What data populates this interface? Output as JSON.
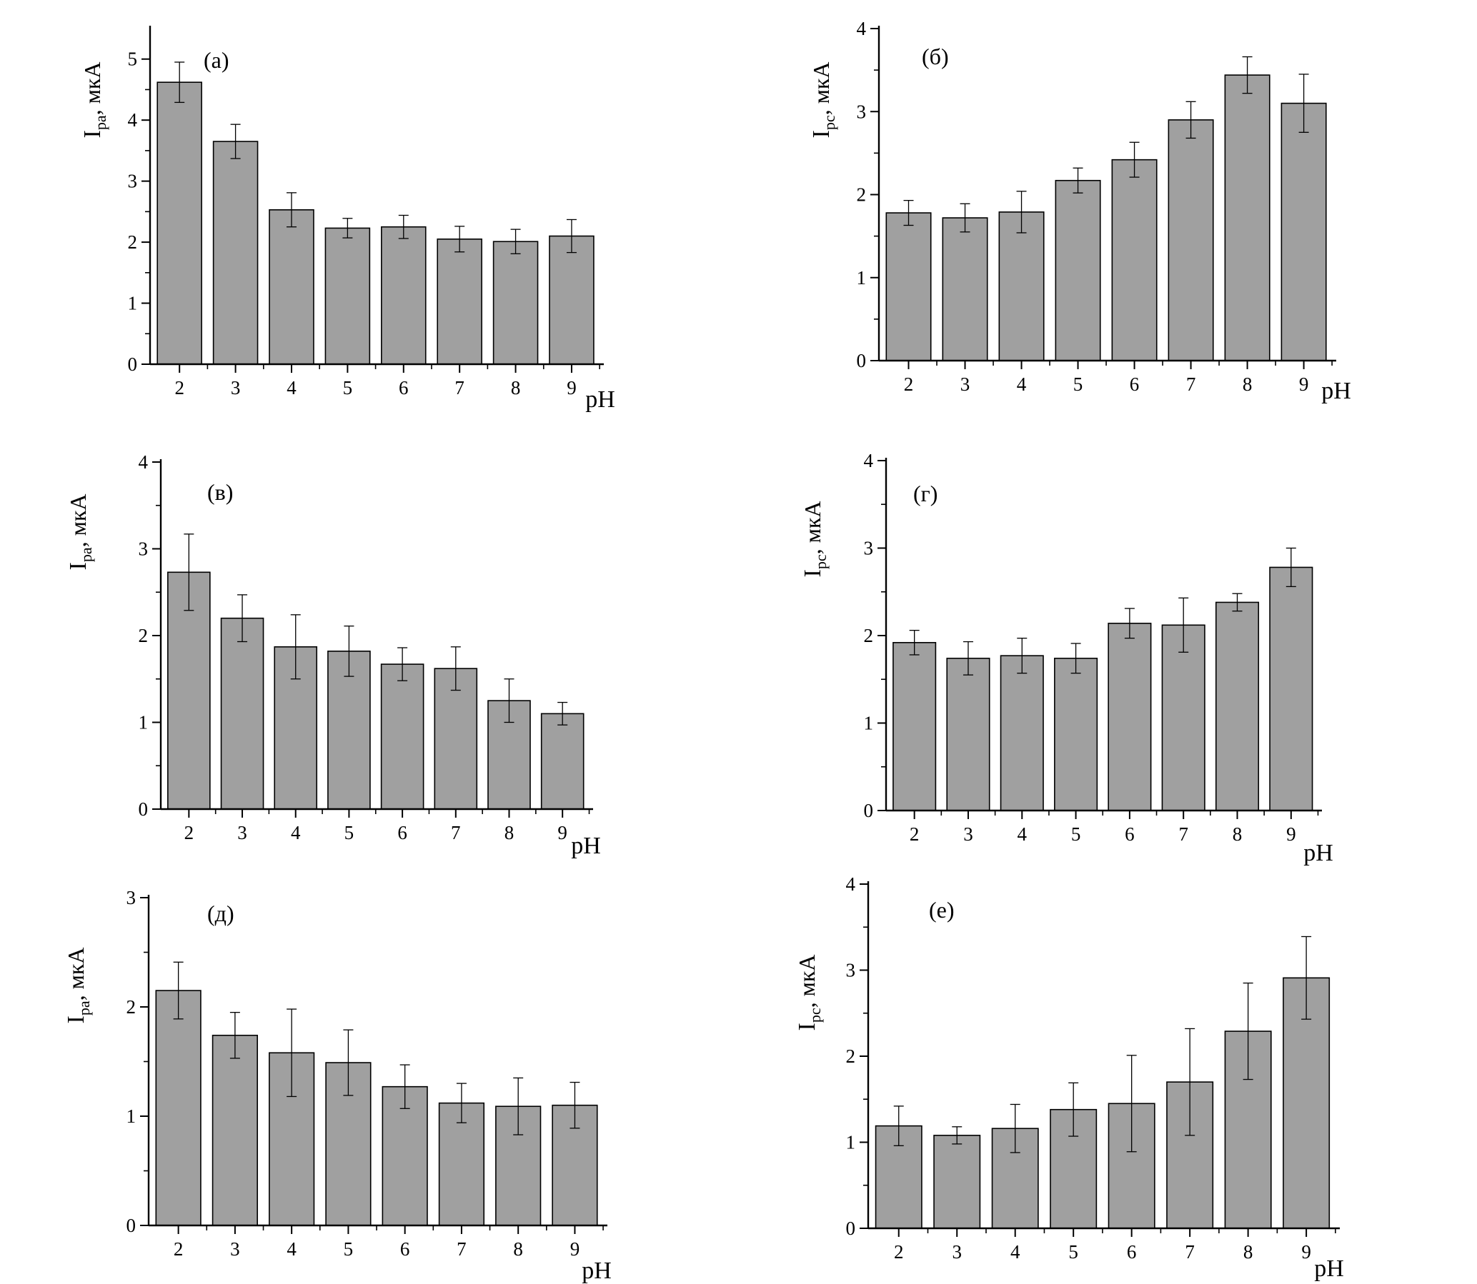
{
  "chart_data": [
    {
      "type": "bar",
      "panel_label": "(а)",
      "ylabel": {
        "main": "I",
        "sub": "pa",
        "unit": ", мкА"
      },
      "xlabel": "pH",
      "categories": [
        "2",
        "3",
        "4",
        "5",
        "6",
        "7",
        "8",
        "9"
      ],
      "values": [
        4.62,
        3.65,
        2.53,
        2.23,
        2.25,
        2.05,
        2.01,
        2.1
      ],
      "errors": [
        0.33,
        0.28,
        0.28,
        0.16,
        0.19,
        0.21,
        0.2,
        0.27
      ],
      "ylim": [
        0,
        5.5
      ],
      "yticks": [
        "0",
        "1",
        "2",
        "3",
        "4",
        "5"
      ],
      "bar_color": "#a0a0a0"
    },
    {
      "type": "bar",
      "panel_label": "(б)",
      "ylabel": {
        "main": "I",
        "sub": "pc",
        "unit": ", мкА"
      },
      "xlabel": "pH",
      "categories": [
        "2",
        "3",
        "4",
        "5",
        "6",
        "7",
        "8",
        "9"
      ],
      "values": [
        1.78,
        1.72,
        1.79,
        2.17,
        2.42,
        2.9,
        3.44,
        3.1
      ],
      "errors": [
        0.15,
        0.17,
        0.25,
        0.15,
        0.21,
        0.22,
        0.22,
        0.35
      ],
      "ylim": [
        0,
        4
      ],
      "yticks": [
        "0",
        "1",
        "2",
        "3",
        "4"
      ],
      "bar_color": "#a0a0a0"
    },
    {
      "type": "bar",
      "panel_label": "(в)",
      "ylabel": {
        "main": "I",
        "sub": "pa",
        "unit": ", мкА"
      },
      "xlabel": "pH",
      "categories": [
        "2",
        "3",
        "4",
        "5",
        "6",
        "7",
        "8",
        "9"
      ],
      "values": [
        2.73,
        2.2,
        1.87,
        1.82,
        1.67,
        1.62,
        1.25,
        1.1
      ],
      "errors": [
        0.44,
        0.27,
        0.37,
        0.29,
        0.19,
        0.25,
        0.25,
        0.13
      ],
      "ylim": [
        0,
        4
      ],
      "yticks": [
        "0",
        "1",
        "2",
        "3",
        "4"
      ],
      "bar_color": "#a0a0a0"
    },
    {
      "type": "bar",
      "panel_label": "(г)",
      "ylabel": {
        "main": "I",
        "sub": "pc",
        "unit": ", мкА"
      },
      "xlabel": "pH",
      "categories": [
        "2",
        "3",
        "4",
        "5",
        "6",
        "7",
        "8",
        "9"
      ],
      "values": [
        1.92,
        1.74,
        1.77,
        1.74,
        2.14,
        2.12,
        2.38,
        2.78
      ],
      "errors": [
        0.14,
        0.19,
        0.2,
        0.17,
        0.17,
        0.31,
        0.1,
        0.22
      ],
      "ylim": [
        0,
        4
      ],
      "yticks": [
        "0",
        "1",
        "2",
        "3",
        "4"
      ],
      "bar_color": "#a0a0a0"
    },
    {
      "type": "bar",
      "panel_label": "(д)",
      "ylabel": {
        "main": "I",
        "sub": "pa",
        "unit": ", мкА"
      },
      "xlabel": "pH",
      "categories": [
        "2",
        "3",
        "4",
        "5",
        "6",
        "7",
        "8",
        "9"
      ],
      "values": [
        2.15,
        1.74,
        1.58,
        1.49,
        1.27,
        1.12,
        1.09,
        1.1
      ],
      "errors": [
        0.26,
        0.21,
        0.4,
        0.3,
        0.2,
        0.18,
        0.26,
        0.21
      ],
      "ylim": [
        0,
        3
      ],
      "yticks": [
        "0",
        "1",
        "2",
        "3"
      ],
      "bar_color": "#a0a0a0"
    },
    {
      "type": "bar",
      "panel_label": "(е)",
      "ylabel": {
        "main": "I",
        "sub": "pc",
        "unit": ", мкА"
      },
      "xlabel": "pH",
      "categories": [
        "2",
        "3",
        "4",
        "5",
        "6",
        "7",
        "8",
        "9"
      ],
      "values": [
        1.19,
        1.08,
        1.16,
        1.38,
        1.45,
        1.7,
        2.29,
        2.91
      ],
      "errors": [
        0.23,
        0.1,
        0.28,
        0.31,
        0.56,
        0.62,
        0.56,
        0.48
      ],
      "ylim": [
        0,
        4
      ],
      "yticks": [
        "0",
        "1",
        "2",
        "3",
        "4"
      ],
      "bar_color": "#a0a0a0"
    }
  ]
}
